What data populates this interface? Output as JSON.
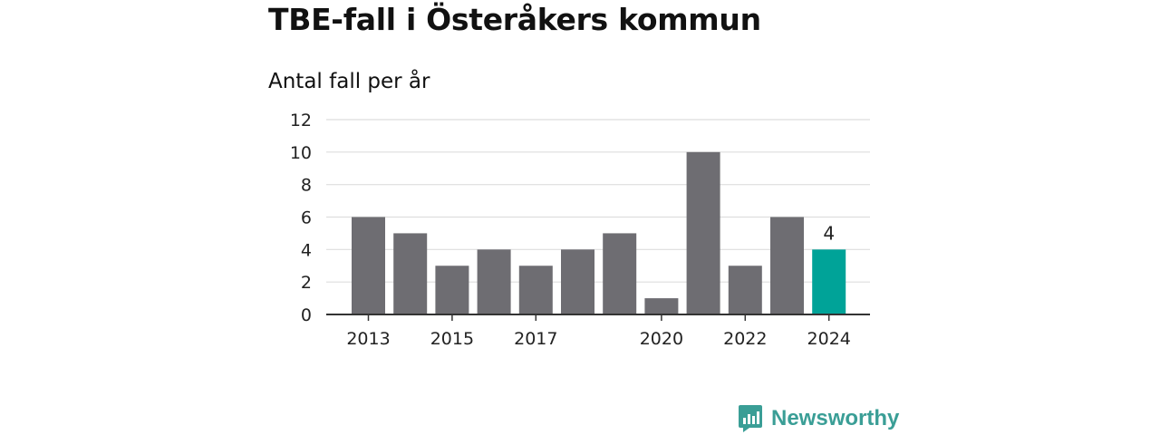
{
  "chart_data": {
    "type": "bar",
    "title": "TBE-fall i Österåkers kommun",
    "subtitle": "Antal fall per år",
    "categories": [
      "2013",
      "2014",
      "2015",
      "2016",
      "2017",
      "2018",
      "2019",
      "2020",
      "2021",
      "2022",
      "2023",
      "2024"
    ],
    "values": [
      6,
      5,
      3,
      4,
      3,
      4,
      5,
      1,
      10,
      3,
      6,
      4
    ],
    "x_tick_labels": [
      "2013",
      "",
      "2015",
      "",
      "2017",
      "",
      "",
      "2020",
      "",
      "2022",
      "",
      "2024"
    ],
    "y_ticks": [
      "0",
      "2",
      "4",
      "6",
      "8",
      "10",
      "12"
    ],
    "ylim": [
      0,
      12
    ],
    "grid": true,
    "highlight": {
      "category": "2024",
      "label": "4"
    },
    "colors": {
      "bar": "#6e6d72",
      "highlight": "#00a398",
      "grid": "#dedede",
      "axis": "#333333",
      "text": "#222222"
    }
  },
  "brand": {
    "name": "Newsworthy",
    "icon": "newsworthy-bar-chart-logo-icon",
    "color": "#3a9e96"
  }
}
